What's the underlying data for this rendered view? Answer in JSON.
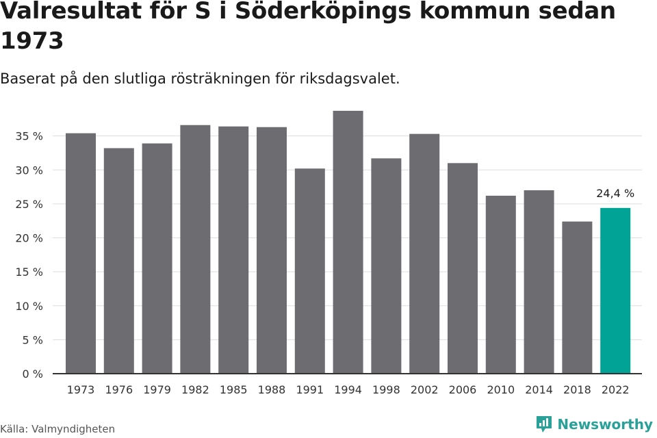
{
  "chart_data": {
    "type": "bar",
    "title": "Valresultat för S i Söderköpings kommun sedan 1973",
    "subtitle": "Baserat på den slutliga rösträkningen för riksdagsvalet.",
    "categories": [
      "1973",
      "1976",
      "1979",
      "1982",
      "1985",
      "1988",
      "1991",
      "1994",
      "1998",
      "2002",
      "2006",
      "2010",
      "2014",
      "2018",
      "2022"
    ],
    "values": [
      35.4,
      33.2,
      33.9,
      36.6,
      36.4,
      36.3,
      30.2,
      38.7,
      31.7,
      35.3,
      31.0,
      26.2,
      27.0,
      22.4,
      24.4
    ],
    "ylim": [
      0,
      40
    ],
    "yticks": [
      0,
      5,
      10,
      15,
      20,
      25,
      30,
      35
    ],
    "ytick_labels": [
      "0 %",
      "5 %",
      "10 %",
      "15 %",
      "20 %",
      "25 %",
      "30 %",
      "35 %"
    ],
    "highlight_index": 14,
    "highlight_label": "24,4 %",
    "grid": true,
    "colors": {
      "bar": "#6d6c71",
      "highlight": "#00a396",
      "grid": "#dddddd",
      "axis": "#333333"
    }
  },
  "footer": {
    "source": "Källa: Valmyndigheten",
    "brand": "Newsworthy",
    "brand_icon": "newsworthy-logo-icon"
  }
}
